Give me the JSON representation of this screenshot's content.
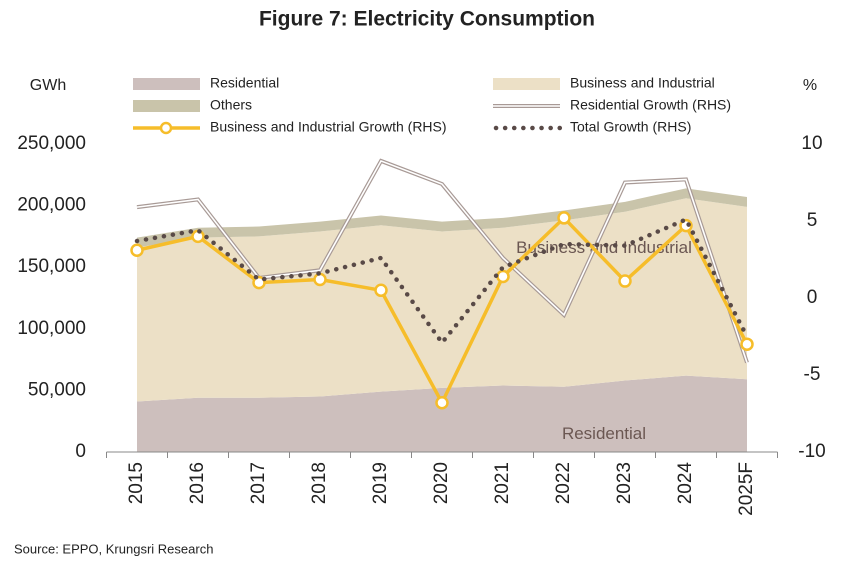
{
  "chart_data": {
    "type": "area",
    "title": "Figure 7: Electricity Consumption",
    "y_label": "GWh",
    "y2_label": "%",
    "source": "Source: EPPO, Krungsri Research",
    "categories": [
      "2015",
      "2016",
      "2017",
      "2018",
      "2019",
      "2020",
      "2021",
      "2022",
      "2023",
      "2024",
      "2025F"
    ],
    "series": [
      {
        "name": "Residential",
        "type": "area",
        "color": "#cdbfbd",
        "values": [
          41000,
          44000,
          44000,
          45000,
          49000,
          52000,
          54000,
          53000,
          58000,
          62000,
          59000
        ]
      },
      {
        "name": "Business and Industrial",
        "type": "area",
        "color": "#ece0c6",
        "values": [
          125000,
          130000,
          131000,
          134000,
          135000,
          127000,
          128000,
          135000,
          137000,
          144000,
          140000
        ]
      },
      {
        "name": "Others",
        "type": "area",
        "color": "#c9c4aa",
        "values": [
          8000,
          8000,
          8000,
          8000,
          8000,
          8000,
          8000,
          8000,
          8000,
          8000,
          8000
        ]
      },
      {
        "name": "Residential Growth (RHS)",
        "type": "line",
        "axis": "y2",
        "outline": true,
        "color": "#a89a96",
        "values": [
          5.9,
          6.4,
          1.3,
          1.8,
          8.9,
          7.4,
          2.6,
          -1.1,
          7.5,
          7.7,
          -4.2
        ]
      },
      {
        "name": "Business and Industrial Growth (RHS)",
        "type": "line",
        "axis": "y2",
        "marker": "circle",
        "color": "#f6bd2a",
        "values": [
          3.1,
          4.0,
          1.0,
          1.2,
          0.5,
          -6.8,
          1.4,
          5.2,
          1.1,
          4.7,
          -3.0
        ]
      },
      {
        "name": "Total Growth (RHS)",
        "type": "line",
        "axis": "y2",
        "dash": "dotted",
        "color": "#594a47",
        "values": [
          3.7,
          4.4,
          1.2,
          1.6,
          2.6,
          -2.9,
          2.0,
          3.5,
          3.4,
          5.1,
          -2.5
        ]
      }
    ],
    "area_labels": [
      {
        "series": 1,
        "index": 7
      },
      {
        "series": 0,
        "index": 7
      }
    ],
    "ylim": [
      0,
      250000
    ],
    "yticks": [
      0,
      {
        "value": 50000,
        "label": "50,000"
      },
      {
        "value": 100000,
        "label": "100,000"
      },
      {
        "value": 150000,
        "label": "150,000"
      },
      {
        "value": 200000,
        "label": "200,000"
      },
      {
        "value": 250000,
        "label": "250,000"
      }
    ],
    "y2lim": [
      -10,
      10
    ],
    "y2ticks": [
      -10,
      -5,
      0,
      5,
      10
    ]
  }
}
